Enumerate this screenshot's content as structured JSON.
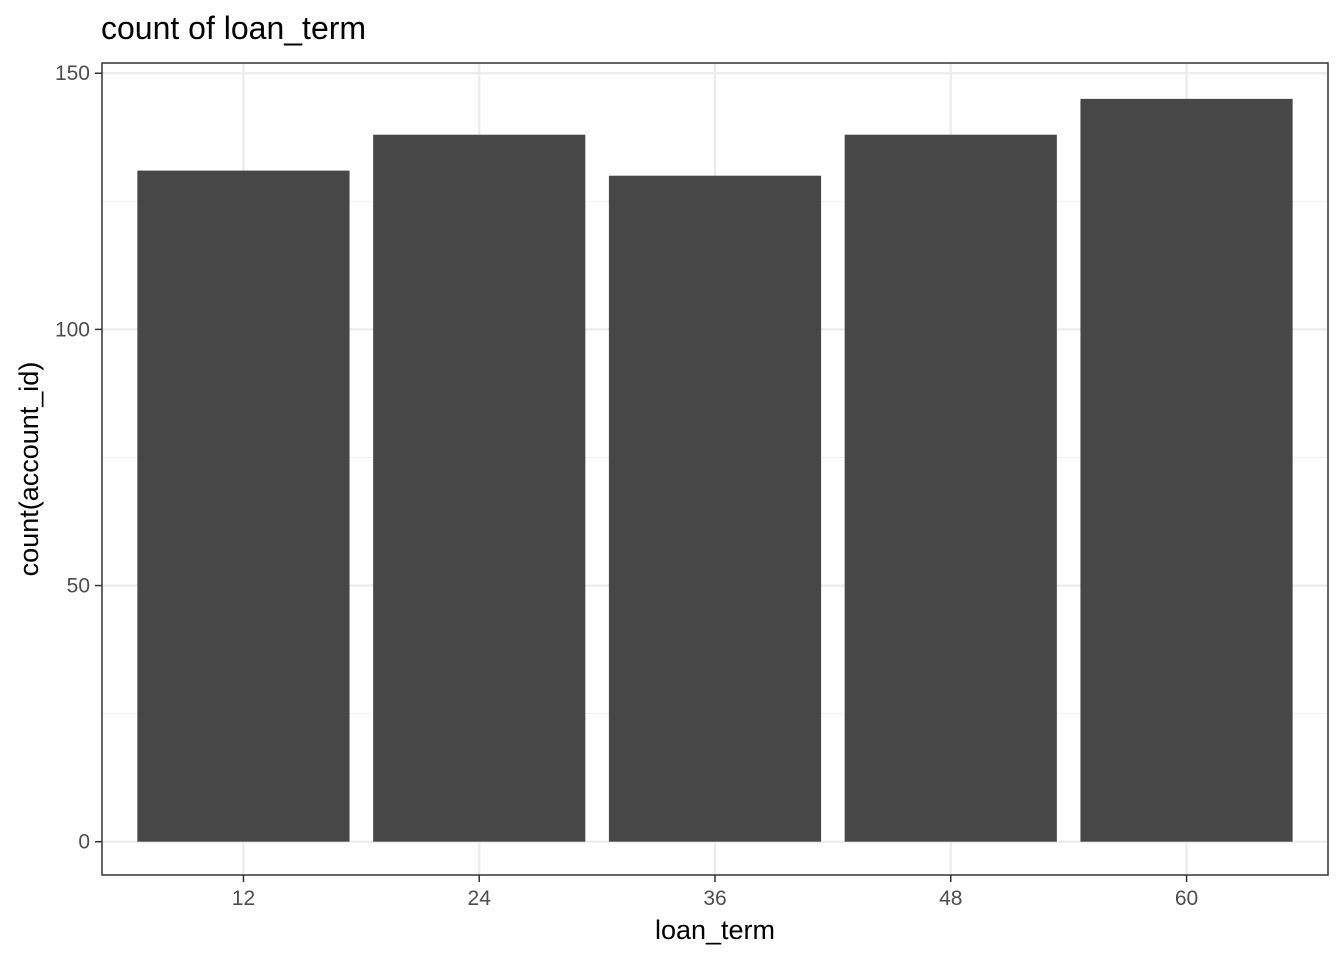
{
  "chart_data": {
    "type": "bar",
    "title": "count of loan_term",
    "xlabel": "loan_term",
    "ylabel": "count(account_id)",
    "categories": [
      "12",
      "24",
      "36",
      "48",
      "60"
    ],
    "values": [
      131,
      138,
      130,
      138,
      145
    ],
    "ylim": [
      -6.5,
      152
    ],
    "yticks": [
      0,
      50,
      100,
      150
    ],
    "yticks_minor": [
      25,
      75,
      125
    ],
    "bar_color": "#474747",
    "grid": true,
    "legend": "none",
    "theme": "bw"
  }
}
